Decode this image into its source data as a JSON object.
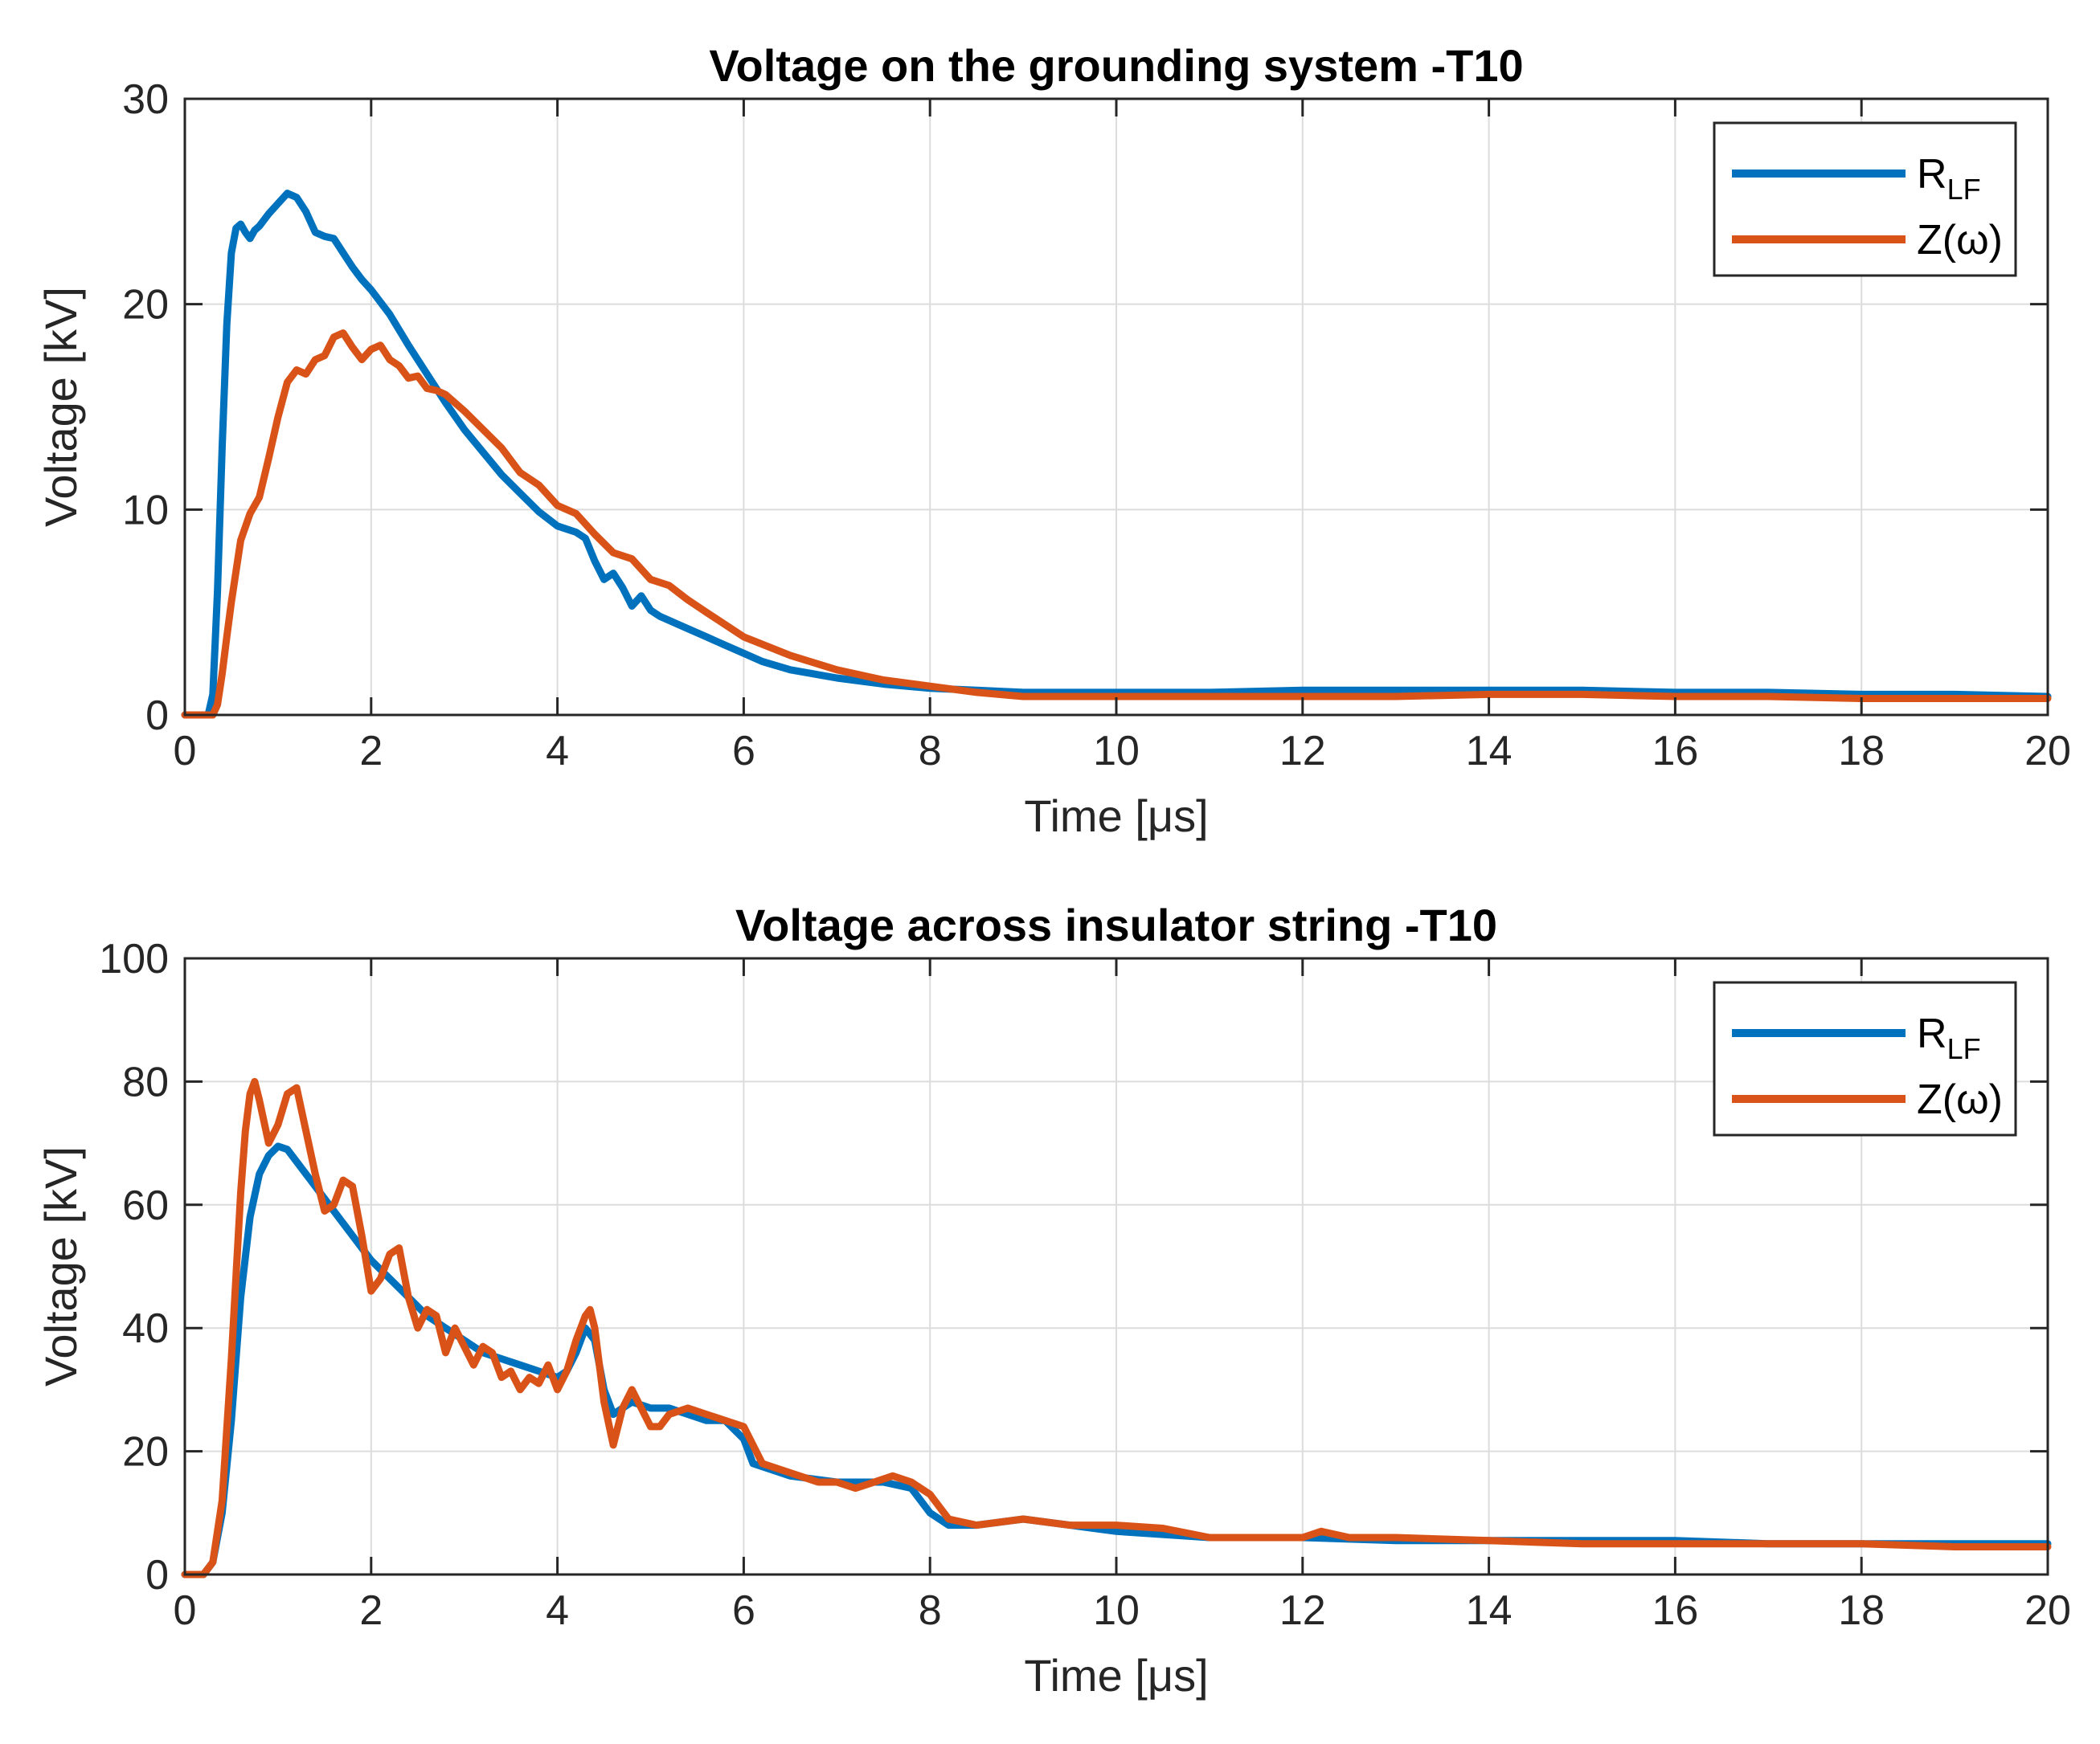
{
  "colors": {
    "blue": "#0072BD",
    "orange": "#D95319"
  },
  "chart_data": [
    {
      "type": "line",
      "title": "Voltage on the grounding system -T10",
      "xlabel": "Time [μs]",
      "ylabel": "Voltage [kV]",
      "xlim": [
        0,
        20
      ],
      "ylim": [
        0,
        30
      ],
      "xticks": [
        "0",
        "2",
        "4",
        "6",
        "8",
        "10",
        "12",
        "14",
        "16",
        "18",
        "20"
      ],
      "yticks": [
        "0",
        "10",
        "20",
        "30"
      ],
      "grid": true,
      "legend_position": "top-right",
      "series": [
        {
          "name": "R",
          "name_sub": "LF",
          "color": "blue",
          "x": [
            0,
            0.25,
            0.3,
            0.35,
            0.4,
            0.45,
            0.5,
            0.55,
            0.6,
            0.65,
            0.7,
            0.75,
            0.8,
            0.9,
            1.0,
            1.1,
            1.2,
            1.3,
            1.4,
            1.5,
            1.6,
            1.7,
            1.8,
            1.9,
            2.0,
            2.2,
            2.4,
            2.6,
            2.8,
            3.0,
            3.2,
            3.4,
            3.6,
            3.8,
            4.0,
            4.2,
            4.3,
            4.4,
            4.5,
            4.6,
            4.7,
            4.8,
            4.9,
            5.0,
            5.1,
            5.2,
            5.4,
            5.6,
            5.8,
            6.0,
            6.2,
            6.5,
            7.0,
            7.5,
            8.0,
            8.5,
            9.0,
            9.5,
            10,
            11,
            12,
            13,
            14,
            15,
            16,
            17,
            18,
            19,
            20
          ],
          "y": [
            0,
            0,
            1,
            6,
            13,
            19,
            22.5,
            23.7,
            23.9,
            23.5,
            23.2,
            23.6,
            23.8,
            24.4,
            24.9,
            25.4,
            25.2,
            24.5,
            23.5,
            23.3,
            23.2,
            22.5,
            21.8,
            21.2,
            20.7,
            19.5,
            18.0,
            16.6,
            15.2,
            13.9,
            12.8,
            11.7,
            10.8,
            9.9,
            9.2,
            8.9,
            8.6,
            7.5,
            6.6,
            6.9,
            6.2,
            5.3,
            5.8,
            5.1,
            4.8,
            4.6,
            4.2,
            3.8,
            3.4,
            3.0,
            2.6,
            2.2,
            1.8,
            1.5,
            1.3,
            1.2,
            1.1,
            1.1,
            1.1,
            1.1,
            1.2,
            1.2,
            1.2,
            1.2,
            1.1,
            1.1,
            1.0,
            1.0,
            0.9
          ]
        },
        {
          "name": "Z(ω)",
          "color": "orange",
          "x": [
            0,
            0.3,
            0.35,
            0.4,
            0.45,
            0.5,
            0.55,
            0.6,
            0.7,
            0.8,
            0.9,
            1.0,
            1.1,
            1.2,
            1.3,
            1.4,
            1.5,
            1.6,
            1.7,
            1.8,
            1.9,
            2.0,
            2.1,
            2.2,
            2.3,
            2.4,
            2.5,
            2.6,
            2.7,
            2.8,
            3.0,
            3.2,
            3.4,
            3.6,
            3.8,
            4.0,
            4.2,
            4.4,
            4.6,
            4.8,
            5.0,
            5.2,
            5.4,
            5.6,
            5.8,
            6.0,
            6.5,
            7.0,
            7.5,
            8.0,
            8.5,
            9.0,
            10,
            11,
            12,
            13,
            14,
            15,
            16,
            17,
            18,
            19,
            20
          ],
          "y": [
            0,
            0,
            0.5,
            2,
            3.8,
            5.5,
            7,
            8.5,
            9.8,
            10.6,
            12.5,
            14.5,
            16.2,
            16.8,
            16.6,
            17.3,
            17.5,
            18.4,
            18.6,
            17.9,
            17.3,
            17.8,
            18.0,
            17.3,
            17.0,
            16.4,
            16.5,
            15.9,
            15.8,
            15.6,
            14.8,
            13.9,
            13.0,
            11.8,
            11.2,
            10.2,
            9.8,
            8.8,
            7.9,
            7.6,
            6.6,
            6.3,
            5.6,
            5.0,
            4.4,
            3.8,
            2.9,
            2.2,
            1.7,
            1.4,
            1.1,
            0.9,
            0.9,
            0.9,
            0.9,
            0.9,
            1.0,
            1.0,
            0.9,
            0.9,
            0.8,
            0.8,
            0.8
          ]
        }
      ]
    },
    {
      "type": "line",
      "title": "Voltage across insulator string -T10",
      "xlabel": "Time [μs]",
      "ylabel": "Voltage [kV]",
      "xlim": [
        0,
        20
      ],
      "ylim": [
        0,
        100
      ],
      "xticks": [
        "0",
        "2",
        "4",
        "6",
        "8",
        "10",
        "12",
        "14",
        "16",
        "18",
        "20"
      ],
      "yticks": [
        "0",
        "20",
        "40",
        "60",
        "80",
        "100"
      ],
      "grid": true,
      "legend_position": "top-right",
      "series": [
        {
          "name": "R",
          "name_sub": "LF",
          "color": "blue",
          "x": [
            0,
            0.2,
            0.3,
            0.4,
            0.5,
            0.6,
            0.7,
            0.8,
            0.9,
            1.0,
            1.1,
            1.2,
            1.4,
            1.6,
            1.8,
            2.0,
            2.2,
            2.4,
            2.6,
            2.8,
            3.0,
            3.2,
            3.4,
            3.6,
            3.8,
            4.0,
            4.1,
            4.2,
            4.3,
            4.4,
            4.5,
            4.6,
            4.7,
            4.8,
            5.0,
            5.2,
            5.4,
            5.6,
            5.8,
            6.0,
            6.1,
            6.3,
            6.5,
            7.0,
            7.5,
            7.8,
            8.0,
            8.2,
            8.5,
            9.0,
            9.5,
            10,
            11,
            12,
            13,
            14,
            15,
            16,
            17,
            18,
            19,
            20
          ],
          "y": [
            0,
            0,
            2,
            10,
            25,
            45,
            58,
            65,
            68,
            69.5,
            69,
            67,
            63,
            59,
            55,
            51,
            48,
            45,
            42,
            40,
            38,
            36,
            35,
            34,
            33,
            32,
            33,
            36,
            40,
            38,
            30,
            26,
            27,
            28,
            27,
            27,
            26,
            25,
            25,
            22,
            18,
            17,
            16,
            15,
            15,
            14,
            10,
            8,
            8,
            9,
            8,
            7,
            6,
            6,
            5.5,
            5.5,
            5.5,
            5.5,
            5,
            5,
            5,
            5
          ]
        },
        {
          "name": "Z(ω)",
          "color": "orange",
          "x": [
            0,
            0.2,
            0.3,
            0.4,
            0.5,
            0.6,
            0.65,
            0.7,
            0.75,
            0.8,
            0.9,
            1.0,
            1.1,
            1.2,
            1.3,
            1.4,
            1.5,
            1.6,
            1.7,
            1.8,
            1.9,
            2.0,
            2.1,
            2.2,
            2.3,
            2.4,
            2.5,
            2.6,
            2.7,
            2.8,
            2.9,
            3.0,
            3.1,
            3.2,
            3.3,
            3.4,
            3.5,
            3.6,
            3.7,
            3.8,
            3.9,
            4.0,
            4.1,
            4.2,
            4.3,
            4.35,
            4.4,
            4.5,
            4.6,
            4.7,
            4.8,
            4.9,
            5.0,
            5.1,
            5.2,
            5.4,
            5.6,
            5.8,
            6.0,
            6.2,
            6.4,
            6.6,
            6.8,
            7.0,
            7.2,
            7.4,
            7.6,
            7.8,
            8.0,
            8.2,
            8.5,
            9.0,
            9.5,
            10,
            10.5,
            11,
            11.5,
            12,
            12.2,
            12.5,
            13,
            14,
            15,
            16,
            17,
            18,
            19,
            20
          ],
          "y": [
            0,
            0,
            2,
            12,
            35,
            62,
            72,
            78,
            80,
            77,
            70,
            73,
            78,
            79,
            72,
            65,
            59,
            60,
            64,
            63,
            55,
            46,
            48,
            52,
            53,
            45,
            40,
            43,
            42,
            36,
            40,
            37,
            34,
            37,
            36,
            32,
            33,
            30,
            32,
            31,
            34,
            30,
            33,
            38,
            42,
            43,
            40,
            28,
            21,
            27,
            30,
            27,
            24,
            24,
            26,
            27,
            26,
            25,
            24,
            18,
            17,
            16,
            15,
            15,
            14,
            15,
            16,
            15,
            13,
            9,
            8,
            9,
            8,
            8,
            7.5,
            6,
            6,
            6,
            7,
            6,
            6,
            5.5,
            5,
            5,
            5,
            5,
            4.5,
            4.5
          ]
        }
      ]
    }
  ]
}
